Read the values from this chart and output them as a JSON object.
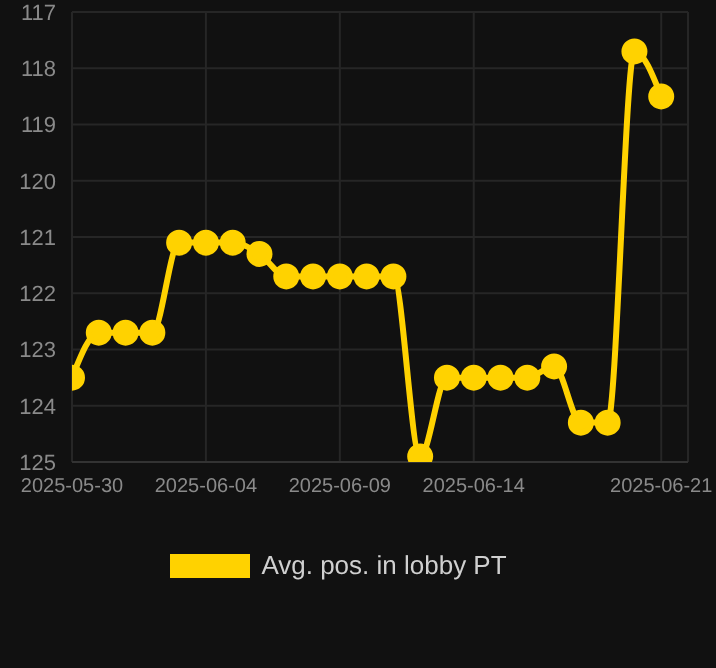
{
  "chart_data": {
    "type": "line",
    "x": [
      "2025-05-30",
      "2025-05-31",
      "2025-06-01",
      "2025-06-02",
      "2025-06-03",
      "2025-06-04",
      "2025-06-05",
      "2025-06-06",
      "2025-06-07",
      "2025-06-08",
      "2025-06-09",
      "2025-06-10",
      "2025-06-11",
      "2025-06-12",
      "2025-06-13",
      "2025-06-14",
      "2025-06-15",
      "2025-06-16",
      "2025-06-17",
      "2025-06-18",
      "2025-06-19",
      "2025-06-20",
      "2025-06-21"
    ],
    "series": [
      {
        "name": "Avg. pos. in lobby PT",
        "color": "#ffd200",
        "values": [
          123.5,
          122.7,
          122.7,
          122.7,
          121.1,
          121.1,
          121.1,
          121.3,
          121.7,
          121.7,
          121.7,
          121.7,
          121.7,
          124.9,
          123.5,
          123.5,
          123.5,
          123.5,
          123.3,
          124.3,
          124.3,
          117.7,
          118.5
        ]
      }
    ],
    "ylim": [
      125,
      117
    ],
    "yticks": [
      117,
      118,
      119,
      120,
      121,
      122,
      123,
      124,
      125
    ],
    "xlim": [
      "2025-05-30",
      "2025-06-22"
    ],
    "xticks": [
      "2025-05-30",
      "2025-06-04",
      "2025-06-09",
      "2025-06-14",
      "2025-06-21"
    ],
    "grid": true,
    "legend": "bottom",
    "marker": "circle",
    "line_style": "solid"
  }
}
